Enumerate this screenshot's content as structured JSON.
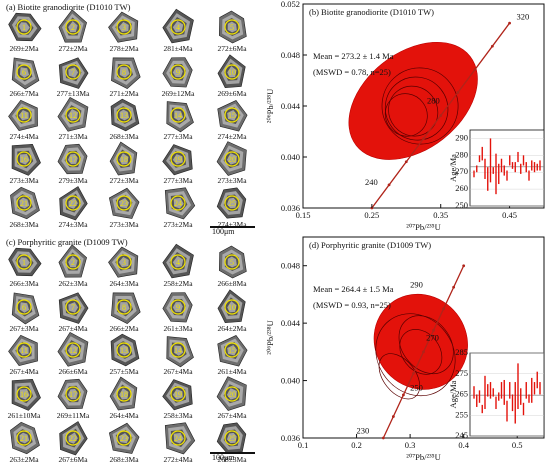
{
  "colors": {
    "ellipse": "#e3120b",
    "concordia": "#b0241a",
    "grain_dark": "#3a3a3a",
    "grain_light": "#bdbdbd",
    "spot": "#f2e300",
    "error_bar": "#e3120b"
  },
  "panel_a": {
    "title": "(a) Biotite granodiorite (D1010 TW)",
    "scale": "100μm",
    "grains": [
      {
        "n": "1",
        "age": "269±2Ma"
      },
      {
        "n": "2",
        "age": "272±2Ma"
      },
      {
        "n": "3",
        "age": "278±2Ma"
      },
      {
        "n": "4",
        "age": "281±4Ma"
      },
      {
        "n": "5",
        "age": "272±6Ma"
      },
      {
        "n": "6",
        "age": "266±7Ma"
      },
      {
        "n": "7",
        "age": "277±13Ma"
      },
      {
        "n": "8",
        "age": "271±2Ma"
      },
      {
        "n": "9",
        "age": "269±12Ma"
      },
      {
        "n": "10",
        "age": "269±6Ma"
      },
      {
        "n": "11",
        "age": "274±4Ma"
      },
      {
        "n": "12",
        "age": "271±3Ma"
      },
      {
        "n": "13",
        "age": "268±3Ma"
      },
      {
        "n": "14",
        "age": "277±3Ma"
      },
      {
        "n": "15",
        "age": "274±2Ma"
      },
      {
        "n": "16",
        "age": "273±3Ma"
      },
      {
        "n": "17",
        "age": "279±3Ma"
      },
      {
        "n": "18",
        "age": "272±3Ma"
      },
      {
        "n": "19",
        "age": "277±3Ma"
      },
      {
        "n": "20",
        "age": "273±3Ma"
      },
      {
        "n": "21",
        "age": "268±3Ma"
      },
      {
        "n": "22",
        "age": "274±3Ma"
      },
      {
        "n": "23",
        "age": "273±3Ma"
      },
      {
        "n": "24",
        "age": "273±2Ma"
      },
      {
        "n": "25",
        "age": "274±3Ma"
      }
    ]
  },
  "panel_c": {
    "title": "(c) Porphyritic granite (D1009 TW)",
    "scale": "100μm",
    "grains": [
      {
        "n": "1",
        "age": "266±3Ma"
      },
      {
        "n": "2",
        "age": "262±3Ma"
      },
      {
        "n": "3",
        "age": "264±3Ma"
      },
      {
        "n": "4",
        "age": "258±2Ma"
      },
      {
        "n": "5",
        "age": "266±8Ma"
      },
      {
        "n": "6",
        "age": "267±3Ma"
      },
      {
        "n": "7",
        "age": "267±4Ma"
      },
      {
        "n": "8",
        "age": "266±2Ma"
      },
      {
        "n": "9",
        "age": "261±3Ma"
      },
      {
        "n": "10",
        "age": "264±2Ma"
      },
      {
        "n": "11",
        "age": "267±4Ma"
      },
      {
        "n": "12",
        "age": "266±6Ma"
      },
      {
        "n": "13",
        "age": "257±5Ma"
      },
      {
        "n": "14",
        "age": "267±4Ma"
      },
      {
        "n": "15",
        "age": "261±4Ma"
      },
      {
        "n": "16",
        "age": "261±10Ma"
      },
      {
        "n": "17",
        "age": "269±11Ma"
      },
      {
        "n": "18",
        "age": "264±4Ma"
      },
      {
        "n": "19",
        "age": "258±3Ma"
      },
      {
        "n": "20",
        "age": "267±4Ma"
      },
      {
        "n": "21",
        "age": "263±2Ma"
      },
      {
        "n": "22",
        "age": "267±6Ma"
      },
      {
        "n": "23",
        "age": "268±3Ma"
      },
      {
        "n": "24",
        "age": "272±4Ma"
      },
      {
        "n": "25",
        "age": "268±3Ma"
      }
    ]
  },
  "panel_b": {
    "title": "(b) Biotite granodiorite (D1010 TW)",
    "mean": "Mean = 273.2 ± 1.4 Ma",
    "mswd": "(MSWD = 0.78, n=25)",
    "xlabel": "²⁰⁷Pb/²³⁵U",
    "ylabel": "²⁰⁶Pb/²³⁸U",
    "xticks": [
      "0.15",
      "0.25",
      "0.35",
      "0.45"
    ],
    "yticks": [
      "0.036",
      "0.040",
      "0.044",
      "0.048",
      "0.052"
    ],
    "concordia_labels": [
      "320",
      "280",
      "240"
    ],
    "inset": {
      "ylabel": "Age/Ma",
      "yticks": [
        "290",
        "280",
        "270",
        "260",
        "250"
      ]
    }
  },
  "panel_d": {
    "title": "(d) Porphyritic granite (D1009 TW)",
    "mean": "Mean = 264.4 ± 1.5 Ma",
    "mswd": "(MSWD = 0.93, n=25)",
    "xlabel": "²⁰⁷Pb/²³⁵U",
    "ylabel": "²⁰⁶Pb/²³⁸U",
    "xticks": [
      "0.1",
      "0.2",
      "0.3",
      "0.4",
      "0.5"
    ],
    "yticks": [
      "0.036",
      "0.040",
      "0.044",
      "0.048"
    ],
    "concordia_labels": [
      "290",
      "270",
      "250",
      "230"
    ],
    "inset": {
      "ylabel": "Age/Ma",
      "yticks": [
        "285",
        "275",
        "265",
        "255",
        "245"
      ]
    }
  },
  "chart_data": [
    {
      "type": "scatter",
      "title": "(b) Biotite granodiorite (D1010 TW)",
      "xlabel": "²⁰⁷Pb/²³⁵U",
      "ylabel": "²⁰⁶Pb/²³⁸U",
      "xlim": [
        0.15,
        0.5
      ],
      "ylim": [
        0.036,
        0.052
      ],
      "concordia": {
        "x": [
          0.25,
          0.45
        ],
        "y": [
          0.036,
          0.0505
        ],
        "age_labels": [
          {
            "age": "320",
            "x": 0.46,
            "y": 0.0508
          },
          {
            "age": "280",
            "x": 0.33,
            "y": 0.0442
          },
          {
            "age": "240",
            "x": 0.24,
            "y": 0.0378
          }
        ]
      },
      "series": [
        {
          "values": [
            {
              "cx": 0.31,
              "cy": 0.0444,
              "rx": 0.105,
              "ry": 0.0038
            },
            {
              "cx": 0.32,
              "cy": 0.044,
              "rx": 0.055,
              "ry": 0.003
            },
            {
              "cx": 0.315,
              "cy": 0.0438,
              "rx": 0.045,
              "ry": 0.0025
            },
            {
              "cx": 0.31,
              "cy": 0.0436,
              "rx": 0.035,
              "ry": 0.002
            },
            {
              "cx": 0.3,
              "cy": 0.0433,
              "rx": 0.03,
              "ry": 0.0017
            }
          ]
        }
      ],
      "inset": {
        "ylim": [
          250,
          295
        ],
        "mean": 273.2,
        "ages": [
          269,
          272,
          278,
          281,
          272,
          266,
          277,
          271,
          269,
          269,
          274,
          271,
          268,
          277,
          274,
          273,
          279,
          272,
          277,
          273,
          268,
          274,
          273,
          273,
          274
        ],
        "errors": [
          2,
          2,
          2,
          4,
          6,
          7,
          13,
          2,
          12,
          6,
          4,
          3,
          3,
          3,
          2,
          3,
          3,
          3,
          3,
          3,
          3,
          3,
          3,
          2,
          3
        ]
      }
    },
    {
      "type": "scatter",
      "title": "(d) Porphyritic granite (D1009 TW)",
      "xlabel": "²⁰⁷Pb/²³⁵U",
      "ylabel": "²⁰⁶Pb/²³⁸U",
      "xlim": [
        0.1,
        0.55
      ],
      "ylim": [
        0.036,
        0.05
      ],
      "concordia": {
        "x": [
          0.25,
          0.4
        ],
        "y": [
          0.036,
          0.048
        ],
        "age_labels": [
          {
            "age": "290",
            "x": 0.3,
            "y": 0.0465
          },
          {
            "age": "270",
            "x": 0.33,
            "y": 0.0428
          },
          {
            "age": "250",
            "x": 0.3,
            "y": 0.0393
          },
          {
            "age": "230",
            "x": 0.2,
            "y": 0.0363
          }
        ]
      },
      "series": [
        {
          "values": [
            {
              "cx": 0.32,
              "cy": 0.0427,
              "rx": 0.085,
              "ry": 0.0034
            },
            {
              "cx": 0.31,
              "cy": 0.0418,
              "rx": 0.07,
              "ry": 0.003
            },
            {
              "cx": 0.28,
              "cy": 0.0403,
              "rx": 0.03,
              "ry": 0.0018
            },
            {
              "cx": 0.33,
              "cy": 0.0425,
              "rx": 0.045,
              "ry": 0.0022
            },
            {
              "cx": 0.32,
              "cy": 0.042,
              "rx": 0.035,
              "ry": 0.0017
            }
          ]
        }
      ],
      "inset": {
        "ylim": [
          245,
          285
        ],
        "mean": 264.4,
        "ages": [
          266,
          262,
          264,
          258,
          266,
          267,
          267,
          266,
          261,
          264,
          267,
          266,
          257,
          267,
          261,
          261,
          269,
          264,
          258,
          267,
          263,
          267,
          268,
          272,
          268
        ],
        "errors": [
          3,
          3,
          3,
          2,
          8,
          3,
          4,
          2,
          3,
          2,
          4,
          6,
          5,
          4,
          4,
          10,
          11,
          4,
          3,
          4,
          2,
          6,
          3,
          4,
          3
        ]
      }
    }
  ]
}
